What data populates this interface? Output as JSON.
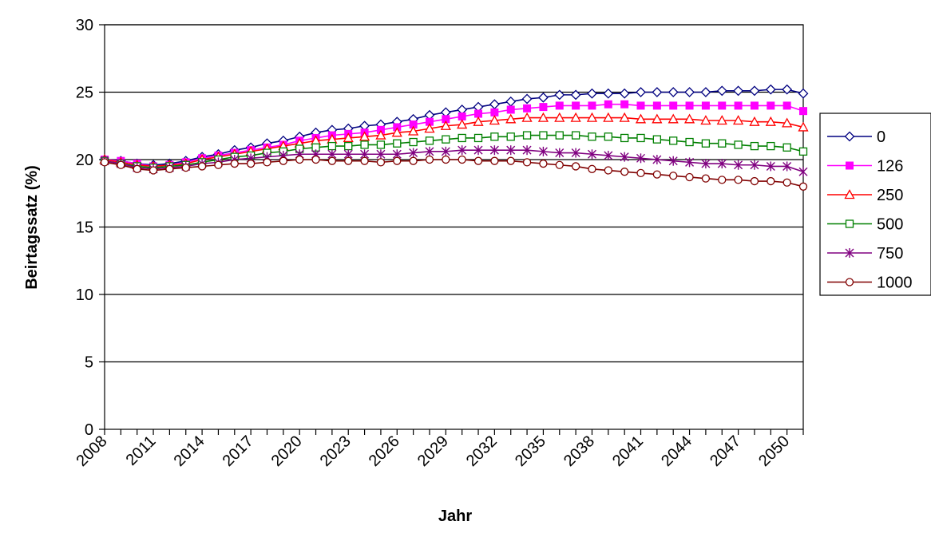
{
  "chart_data": {
    "type": "line",
    "title": "",
    "xlabel": "Jahr",
    "ylabel": "Beirtagssatz (%)",
    "xlim": [
      2008,
      2051
    ],
    "ylim": [
      0,
      30
    ],
    "y_ticks": [
      0,
      5,
      10,
      15,
      20,
      25,
      30
    ],
    "x_tick_labels": [
      "2008",
      "2011",
      "2014",
      "2017",
      "2020",
      "2023",
      "2026",
      "2029",
      "2032",
      "2035",
      "2038",
      "2041",
      "2044",
      "2047",
      "2050"
    ],
    "grid": "horizontal",
    "legend_position": "right",
    "x": [
      2008,
      2009,
      2010,
      2011,
      2012,
      2013,
      2014,
      2015,
      2016,
      2017,
      2018,
      2019,
      2020,
      2021,
      2022,
      2023,
      2024,
      2025,
      2026,
      2027,
      2028,
      2029,
      2030,
      2031,
      2032,
      2033,
      2034,
      2035,
      2036,
      2037,
      2038,
      2039,
      2040,
      2041,
      2042,
      2043,
      2044,
      2045,
      2046,
      2047,
      2048,
      2049,
      2050,
      2051
    ],
    "series": [
      {
        "name": "0",
        "color": "#000080",
        "marker": "diamond",
        "values": [
          20.0,
          19.9,
          19.7,
          19.6,
          19.7,
          19.9,
          20.2,
          20.4,
          20.7,
          20.9,
          21.2,
          21.4,
          21.7,
          22.0,
          22.2,
          22.3,
          22.5,
          22.6,
          22.8,
          23.0,
          23.3,
          23.5,
          23.7,
          23.9,
          24.1,
          24.3,
          24.5,
          24.6,
          24.8,
          24.8,
          24.9,
          24.9,
          24.9,
          25.0,
          25.0,
          25.0,
          25.0,
          25.0,
          25.1,
          25.1,
          25.1,
          25.2,
          25.2,
          24.9
        ]
      },
      {
        "name": "126",
        "color": "#ff00ff",
        "marker": "square-filled",
        "values": [
          20.0,
          19.9,
          19.7,
          19.5,
          19.6,
          19.8,
          20.1,
          20.3,
          20.5,
          20.7,
          20.9,
          21.1,
          21.4,
          21.6,
          21.8,
          21.9,
          22.0,
          22.2,
          22.4,
          22.6,
          22.8,
          23.0,
          23.2,
          23.4,
          23.5,
          23.7,
          23.8,
          23.9,
          24.0,
          24.0,
          24.0,
          24.1,
          24.1,
          24.0,
          24.0,
          24.0,
          24.0,
          24.0,
          24.0,
          24.0,
          24.0,
          24.0,
          24.0,
          23.6
        ]
      },
      {
        "name": "250",
        "color": "#ff0000",
        "marker": "triangle",
        "values": [
          20.0,
          19.8,
          19.6,
          19.5,
          19.6,
          19.7,
          20.0,
          20.2,
          20.4,
          20.6,
          20.8,
          21.0,
          21.2,
          21.4,
          21.5,
          21.6,
          21.7,
          21.8,
          22.0,
          22.1,
          22.3,
          22.5,
          22.6,
          22.8,
          22.9,
          23.0,
          23.1,
          23.1,
          23.1,
          23.1,
          23.1,
          23.1,
          23.1,
          23.0,
          23.0,
          23.0,
          23.0,
          22.9,
          22.9,
          22.9,
          22.8,
          22.8,
          22.7,
          22.4
        ]
      },
      {
        "name": "500",
        "color": "#008000",
        "marker": "square",
        "values": [
          19.9,
          19.7,
          19.5,
          19.4,
          19.5,
          19.6,
          19.8,
          20.0,
          20.2,
          20.3,
          20.5,
          20.6,
          20.8,
          20.9,
          21.0,
          21.0,
          21.1,
          21.1,
          21.2,
          21.3,
          21.4,
          21.5,
          21.6,
          21.6,
          21.7,
          21.7,
          21.8,
          21.8,
          21.8,
          21.8,
          21.7,
          21.7,
          21.6,
          21.6,
          21.5,
          21.4,
          21.3,
          21.2,
          21.2,
          21.1,
          21.0,
          21.0,
          20.9,
          20.6
        ]
      },
      {
        "name": "750",
        "color": "#800080",
        "marker": "asterisk",
        "values": [
          19.9,
          19.7,
          19.4,
          19.3,
          19.4,
          19.5,
          19.7,
          19.8,
          20.0,
          20.1,
          20.2,
          20.3,
          20.4,
          20.4,
          20.4,
          20.4,
          20.4,
          20.4,
          20.4,
          20.5,
          20.6,
          20.6,
          20.7,
          20.7,
          20.7,
          20.7,
          20.7,
          20.6,
          20.5,
          20.5,
          20.4,
          20.3,
          20.2,
          20.1,
          20.0,
          19.9,
          19.8,
          19.7,
          19.7,
          19.6,
          19.6,
          19.5,
          19.5,
          19.1
        ]
      },
      {
        "name": "1000",
        "color": "#800000",
        "marker": "circle",
        "values": [
          19.8,
          19.6,
          19.3,
          19.2,
          19.3,
          19.4,
          19.5,
          19.6,
          19.7,
          19.7,
          19.8,
          19.9,
          20.0,
          20.0,
          19.9,
          19.9,
          19.9,
          19.8,
          19.9,
          19.9,
          20.0,
          20.0,
          20.0,
          19.9,
          19.9,
          19.9,
          19.8,
          19.7,
          19.6,
          19.5,
          19.3,
          19.2,
          19.1,
          19.0,
          18.9,
          18.8,
          18.7,
          18.6,
          18.5,
          18.5,
          18.4,
          18.4,
          18.3,
          18.0
        ]
      }
    ]
  }
}
